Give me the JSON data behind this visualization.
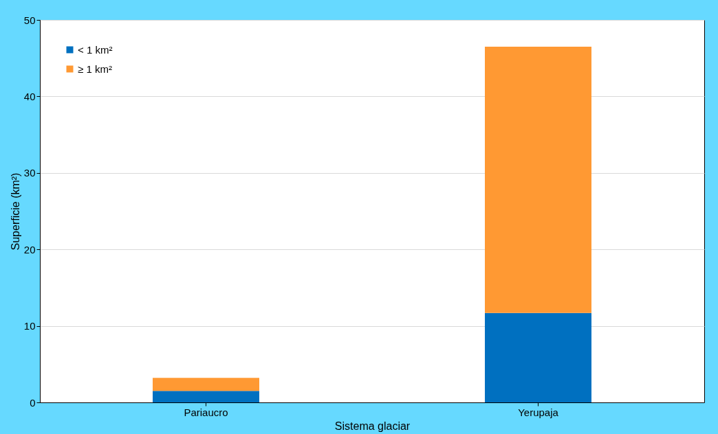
{
  "chart_data": {
    "type": "bar",
    "stacked": true,
    "xlabel": "Sistema glaciar",
    "ylabel": "Superficie (km²)",
    "categories": [
      "Pariaucro",
      "Yerupaja"
    ],
    "series": [
      {
        "name": "< 1 km²",
        "color": "#0070c0",
        "values": [
          1.5,
          11.7
        ]
      },
      {
        "name": "≥ 1 km²",
        "color": "#ff9933",
        "values": [
          1.7,
          34.8
        ]
      }
    ],
    "ylim": [
      0,
      50
    ],
    "yticks": [
      0,
      10,
      20,
      30,
      40,
      50
    ],
    "grid": "y",
    "legend": "top left"
  }
}
